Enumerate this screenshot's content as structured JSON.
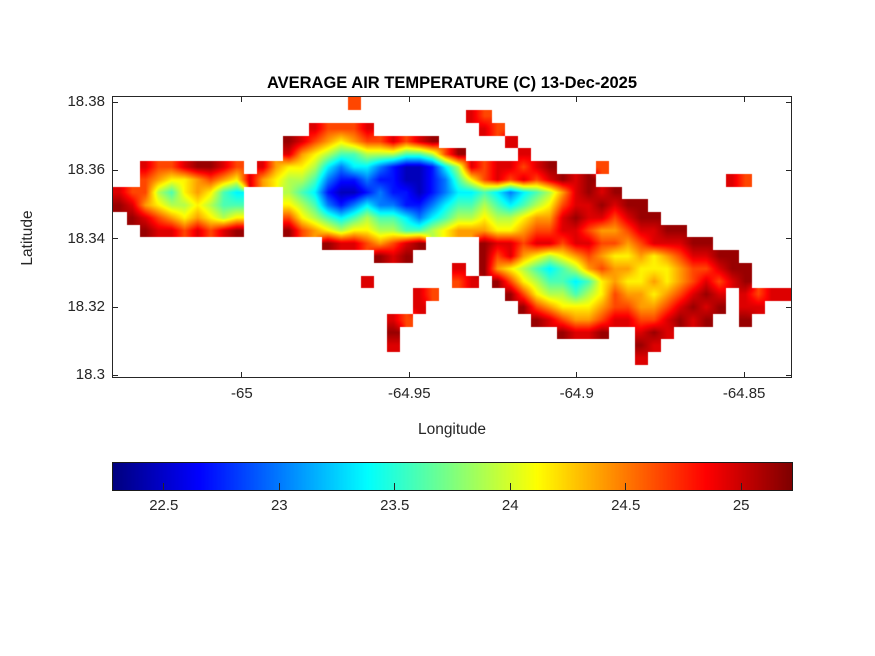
{
  "title": "AVERAGE AIR TEMPERATURE (C) 13-Dec-2025",
  "background_color": "#ffffff",
  "axes": {
    "xlabel": "Longitude",
    "ylabel": "Latitude",
    "xlim": [
      -65.0385,
      -64.836
    ],
    "ylim": [
      18.2995,
      18.3815
    ],
    "xticks": [
      -65,
      -64.95,
      -64.9,
      -64.85
    ],
    "xtick_labels": [
      "-65",
      "-64.95",
      "-64.9",
      "-64.85"
    ],
    "yticks": [
      18.3,
      18.32,
      18.34,
      18.36,
      18.38
    ],
    "ytick_labels": [
      "18.3",
      "18.32",
      "18.34",
      "18.36",
      "18.38"
    ],
    "axis_color": "#262626",
    "tick_direction": "in",
    "box": true
  },
  "colorbar": {
    "orientation": "horizontal",
    "min": 22.28,
    "max": 25.22,
    "ticks": [
      22.5,
      23,
      23.5,
      24,
      24.5,
      25
    ],
    "tick_labels": [
      "22.5",
      "23",
      "23.5",
      "24",
      "24.5",
      "25"
    ],
    "colormap": "jet"
  },
  "chart_data": {
    "type": "heatmap",
    "title": "AVERAGE AIR TEMPERATURE (C) 13-Dec-2025",
    "xlabel": "Longitude",
    "ylabel": "Latitude",
    "units": "C",
    "date": "13-Dec-2025",
    "colormap": "jet",
    "value_range": [
      22.28,
      25.22
    ],
    "lon_range": [
      -65.0385,
      -64.836
    ],
    "lat_range": [
      18.2995,
      18.3815
    ],
    "sea_color": "#ffffff",
    "grid_cols": 52,
    "grid_rows": 22,
    "encoding": {
      "sea": ".",
      "levels": {
        "a": 22.45,
        "b": 22.7,
        "c": 23.0,
        "d": 23.35,
        "e": 23.6,
        "f": 23.9,
        "g": 24.15,
        "h": 24.4,
        "i": 24.65,
        "j": 24.95,
        "k": 25.15
      }
    },
    "grid": [
      "..................i.................................",
      "...........................ji......................",
      "...............jiiij........ji......................",
      ".............kjihghiijijk.....j.....................",
      ".............jhgfeefffeefik....j....................",
      "..jiijkkji.jhggfdcddcbaabdfjijjijk...i..............",
      "..ihgghihgjhgffecbbcbbaabcegijijijkjk..........ji...",
      "jiifeghged...fedbaabcbbabcddedcdefhjkjk.............",
      "kjhgffgfee...gfecbcdccbbcdeefedefgijjkjkk...........",
      ".kjihghgfg...igfedefeedcdeffgffghhjkjjijkk..........",
      "..kjjijijk...kihgfggffeefghhhgghiijjihhijjkk........",
      "................kjjihijk....kjjijjijjiihijjjkk......",
      "....................kjk.....kijhgfghihgghghijjkk....",
      "..........................j.khgfedefhihhggghiijkk...",
      "...................j......ij.kigfeedeghgghghijijk...",
      ".......................ji.....kigffefgihhghijkj.jijj",
      ".......................j.......kihggghiihhijkjk.jj..",
      ".....................ji.........kjihhijjiijkjk..k...",
      ".....................k............kjjk..jkj.........",
      ".....................j..................kj..........",
      "........................................j...........",
      "...................................................."
    ]
  }
}
